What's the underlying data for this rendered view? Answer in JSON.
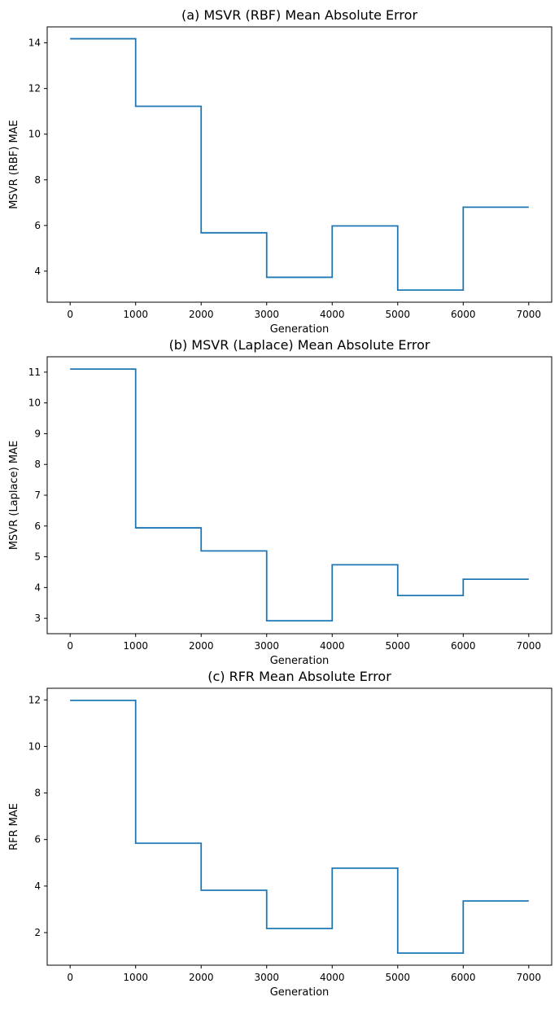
{
  "chart_data": [
    {
      "type": "line",
      "title": "(a) MSVR (RBF) Mean Absolute Error",
      "xlabel": "Generation",
      "ylabel": "MSVR (RBF) MAE",
      "xlim": [
        -350,
        7350
      ],
      "ylim": [
        2.64,
        14.7
      ],
      "xticks": [
        0,
        1000,
        2000,
        3000,
        4000,
        5000,
        6000,
        7000
      ],
      "yticks": [
        4,
        6,
        8,
        10,
        12,
        14
      ],
      "grid": false,
      "step": "post",
      "series": [
        {
          "color": "#1f77b4",
          "x": [
            0,
            1000,
            2000,
            3000,
            4000,
            5000,
            6000,
            7000
          ],
          "y": [
            14.18,
            11.22,
            5.68,
            3.73,
            5.98,
            3.17,
            6.8,
            6.8
          ]
        }
      ]
    },
    {
      "type": "line",
      "title": "(b) MSVR (Laplace) Mean Absolute Error",
      "xlabel": "Generation",
      "ylabel": "MSVR (Laplace) MAE",
      "xlim": [
        -350,
        7350
      ],
      "ylim": [
        2.5,
        11.5
      ],
      "xticks": [
        0,
        1000,
        2000,
        3000,
        4000,
        5000,
        6000,
        7000
      ],
      "yticks": [
        3,
        4,
        5,
        6,
        7,
        8,
        9,
        10,
        11
      ],
      "grid": false,
      "step": "post",
      "series": [
        {
          "color": "#1f77b4",
          "x": [
            0,
            1000,
            2000,
            3000,
            4000,
            5000,
            6000,
            7000
          ],
          "y": [
            11.1,
            5.94,
            5.19,
            2.92,
            4.74,
            3.74,
            4.27,
            4.27
          ]
        }
      ]
    },
    {
      "type": "line",
      "title": "(c) RFR Mean Absolute Error",
      "xlabel": "Generation",
      "ylabel": "RFR MAE",
      "xlim": [
        -350,
        7350
      ],
      "ylim": [
        0.6,
        12.5
      ],
      "xticks": [
        0,
        1000,
        2000,
        3000,
        4000,
        5000,
        6000,
        7000
      ],
      "yticks": [
        2,
        4,
        6,
        8,
        10,
        12
      ],
      "grid": false,
      "step": "post",
      "series": [
        {
          "color": "#1f77b4",
          "x": [
            0,
            1000,
            2000,
            3000,
            4000,
            5000,
            6000,
            7000
          ],
          "y": [
            11.98,
            5.84,
            3.82,
            2.18,
            4.77,
            1.12,
            3.36,
            3.36
          ]
        }
      ]
    }
  ]
}
